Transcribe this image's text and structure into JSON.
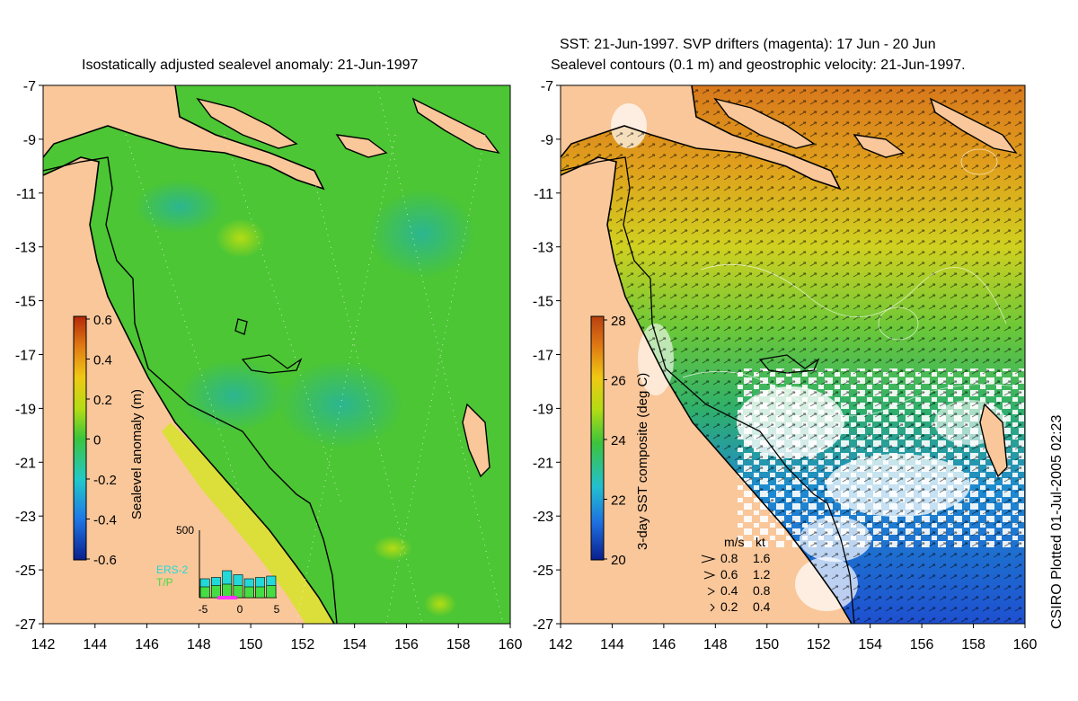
{
  "left_panel": {
    "title": "Isostatically adjusted sealevel anomaly: 21-Jun-1997",
    "colorbar": {
      "label": "Sealevel anomaly (m)",
      "ticks": [
        "0.6",
        "0.4",
        "0.2",
        "0",
        "-0.2",
        "-0.4",
        "-0.6"
      ],
      "range": [
        -0.6,
        0.6
      ],
      "colors": [
        "#0a1f8c",
        "#1e78e6",
        "#22c8c8",
        "#3cc43c",
        "#b4dc14",
        "#f0c814",
        "#e07814",
        "#b42808"
      ]
    },
    "histogram": {
      "ymax_label": "500",
      "legend": [
        "ERS-2",
        "T/P"
      ],
      "legend_colors": [
        "#22d8d8",
        "#44dd44"
      ],
      "xticks": [
        "-5",
        "0",
        "5"
      ],
      "bars": [
        140,
        150,
        200,
        170,
        140,
        150,
        160
      ],
      "inner_bars": [
        80,
        90,
        100,
        90,
        80,
        80,
        90
      ],
      "ymax": 500
    }
  },
  "right_panel": {
    "title_line1": "SST: 21-Jun-1997. SVP drifters (magenta): 17 Jun - 20 Jun",
    "title_line2": "Sealevel contours (0.1 m) and geostrophic velocity: 21-Jun-1997.",
    "colorbar": {
      "label": "3-day SST composite (deg C)",
      "ticks": [
        "28",
        "26",
        "24",
        "22",
        "20"
      ],
      "range": [
        20,
        29
      ],
      "colors": [
        "#0a1f8c",
        "#1e6ee0",
        "#22c0d0",
        "#3cc43c",
        "#b4dc14",
        "#f0c814",
        "#e07814",
        "#b84010"
      ]
    },
    "velocity_legend": {
      "header_ms": "m/s",
      "header_kt": "kt",
      "rows": [
        {
          "ms": "0.8",
          "kt": "1.6"
        },
        {
          "ms": "0.6",
          "kt": "1.2"
        },
        {
          "ms": "0.4",
          "kt": "0.8"
        },
        {
          "ms": "0.2",
          "kt": "0.4"
        }
      ]
    }
  },
  "axes": {
    "lon_ticks": [
      "142",
      "144",
      "146",
      "148",
      "150",
      "152",
      "154",
      "156",
      "158",
      "160"
    ],
    "lat_ticks": [
      "-7",
      "-9",
      "-11",
      "-13",
      "-15",
      "-17",
      "-19",
      "-21",
      "-23",
      "-25",
      "-27"
    ]
  },
  "credit": "CSIRO Plotted 01-Jul-2005 02:23",
  "colors": {
    "land": "#f9c79a",
    "ocean_green": "#4cc634",
    "ocean_green_dark": "#34b83c",
    "coast_yellow": "#d8e030",
    "sst_orange": "#e08a18",
    "sst_yellow": "#d8d820",
    "sst_blue": "#2050d0",
    "cloud": "#ffffff"
  }
}
